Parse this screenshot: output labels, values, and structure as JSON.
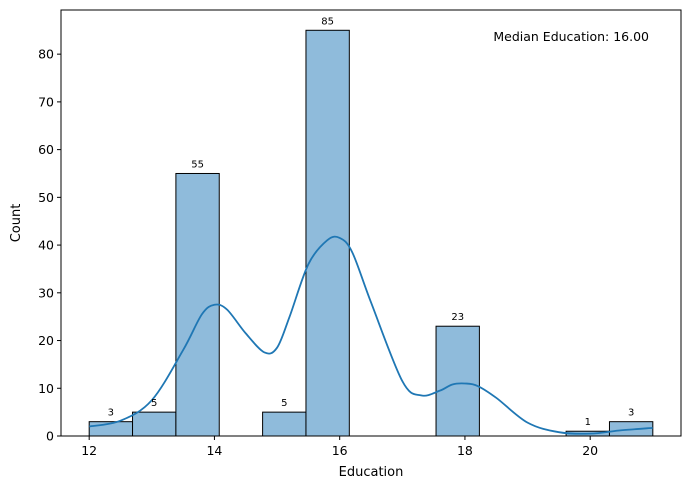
{
  "chart_data": {
    "type": "bar",
    "subtype": "histogram-with-kde",
    "x_bin_edges": [
      12.0,
      12.6923,
      13.3846,
      14.0769,
      14.7692,
      15.4615,
      16.1538,
      16.8462,
      17.5385,
      18.2308,
      18.9231,
      19.6154,
      20.3077,
      21.0
    ],
    "values": [
      3,
      5,
      55,
      0,
      5,
      85,
      0,
      0,
      23,
      0,
      0,
      1,
      3
    ],
    "bar_labels": [
      "3",
      "5",
      "55",
      "",
      "5",
      "85",
      "",
      "",
      "23",
      "",
      "",
      "1",
      "3"
    ],
    "kde": {
      "x": [
        12.0,
        12.5,
        13.0,
        13.5,
        13.8,
        14.0,
        14.2,
        14.5,
        14.8,
        15.0,
        15.2,
        15.5,
        15.8,
        16.0,
        16.2,
        16.5,
        17.0,
        17.3,
        17.6,
        17.8,
        18.0,
        18.2,
        18.5,
        19.0,
        19.5,
        20.0,
        20.5,
        21.0
      ],
      "y": [
        2.0,
        3.2,
        7.5,
        18.0,
        25.5,
        27.5,
        26.5,
        21.5,
        17.5,
        18.5,
        25.0,
        36.0,
        41.0,
        41.5,
        38.5,
        28.0,
        11.5,
        8.5,
        9.5,
        10.8,
        11.0,
        10.5,
        8.0,
        2.8,
        0.8,
        0.5,
        1.2,
        1.7
      ]
    },
    "xlabel": "Education",
    "ylabel": "Count",
    "xlim": [
      11.55,
      21.45
    ],
    "ylim": [
      0,
      89.25
    ],
    "xticks": [
      12,
      14,
      16,
      18,
      20
    ],
    "yticks": [
      0,
      10,
      20,
      30,
      40,
      50,
      60,
      70,
      80
    ],
    "annotation": "Median Education: 16.00",
    "grid": false,
    "legend": "none",
    "colors": {
      "bar_fill": "#8fbbdb",
      "bar_edge": "#000000",
      "kde_line": "#1f77b4"
    }
  }
}
